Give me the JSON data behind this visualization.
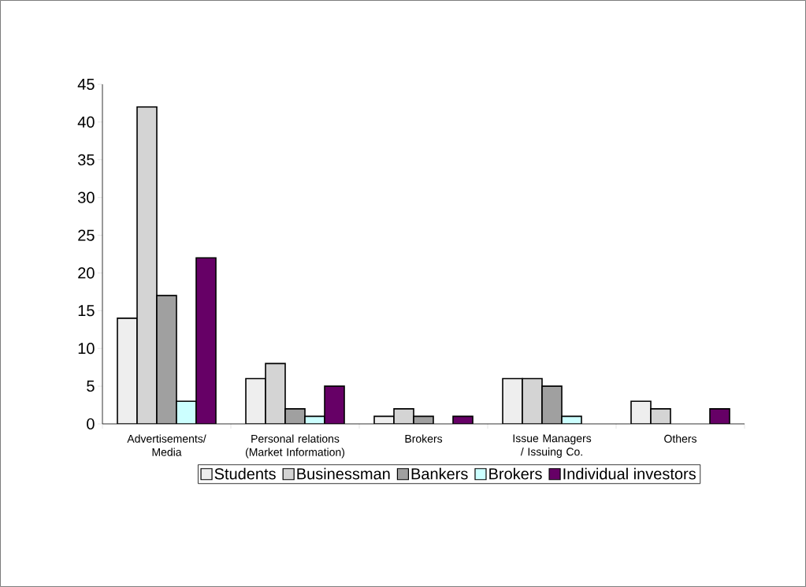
{
  "chart_data": {
    "type": "bar",
    "categories": [
      "Advertisements/ Media",
      "Personal relations (Market Information)",
      "Brokers",
      "Issue Managers / Issuing Co.",
      "Others"
    ],
    "series": [
      {
        "name": "Students",
        "color": "#eeeeee",
        "values": [
          14,
          6,
          1,
          6,
          3
        ]
      },
      {
        "name": "Businessman",
        "color": "#d4d4d4",
        "values": [
          42,
          8,
          2,
          6,
          2
        ]
      },
      {
        "name": "Bankers",
        "color": "#a0a0a0",
        "values": [
          17,
          2,
          1,
          5,
          null
        ]
      },
      {
        "name": "Brokers",
        "color": "#ccffff",
        "values": [
          3,
          1,
          null,
          1,
          null
        ]
      },
      {
        "name": "Individual investors",
        "color": "#660066",
        "values": [
          22,
          5,
          1,
          null,
          2
        ]
      }
    ],
    "ylim": [
      0,
      45
    ],
    "yticks": [
      0,
      5,
      10,
      15,
      20,
      25,
      30,
      35,
      40,
      45
    ],
    "legend": "bottom",
    "grid": false
  }
}
